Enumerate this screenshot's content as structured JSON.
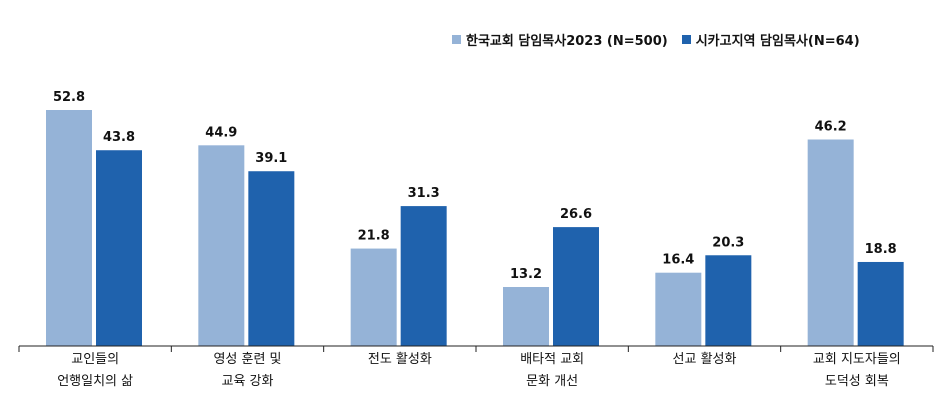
{
  "chart_data": {
    "type": "bar",
    "title": "",
    "xlabel": "",
    "ylabel": "",
    "ylim": [
      0,
      60
    ],
    "grid": false,
    "legend_position": "top-right",
    "categories": [
      [
        "교인들의",
        "언행일치의 삶"
      ],
      [
        "영성 훈련 및",
        "교육 강화"
      ],
      [
        "전도 활성화"
      ],
      [
        "배타적 교회",
        "문화 개선"
      ],
      [
        "선교 활성화"
      ],
      [
        "교회 지도자들의",
        "도덕성 회복"
      ]
    ],
    "series": [
      {
        "name": "한국교회 담임목사2023 (N=500)",
        "color": "#95b3d7",
        "values": [
          52.8,
          44.9,
          21.8,
          13.2,
          16.4,
          46.2
        ]
      },
      {
        "name": "시카고지역 담임목사(N=64)",
        "color": "#1f62ad",
        "values": [
          43.8,
          39.1,
          31.3,
          26.6,
          20.3,
          18.8
        ]
      }
    ]
  }
}
